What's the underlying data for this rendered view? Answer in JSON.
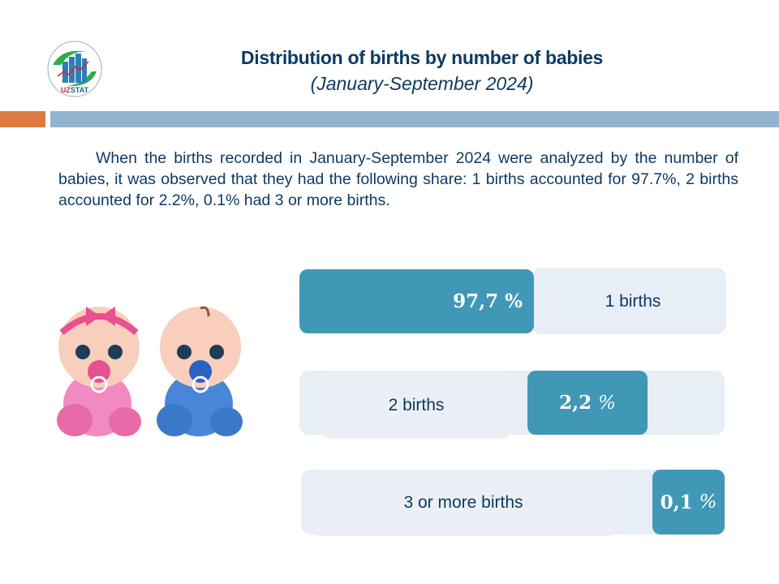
{
  "header": {
    "logo_text": "UZSTAT",
    "title": "Distribution of births by number of babies",
    "subtitle": "(January-September 2024)"
  },
  "description": "When the births recorded in January-September 2024 were analyzed by the number of babies, it was observed that they had the following share: 1 births accounted for 97.7%, 2 births accounted for 2.2%, 0.1% had 3 or more births.",
  "colors": {
    "accent": "#4198b6",
    "track": "#e8eef5",
    "text": "#0e3a63",
    "orange": "#dd7a42",
    "header_bar": "#93b4d0"
  },
  "rows": [
    {
      "label": "1 births",
      "value": "97,7",
      "unit": "%",
      "share": 97.7
    },
    {
      "label": "2 births",
      "value": "2,2",
      "unit": "%",
      "share": 2.2
    },
    {
      "label": "3 or more births",
      "value": "0,1",
      "unit": "%",
      "share": 0.1
    }
  ],
  "illustration": "baby-girl-and-boy-icon"
}
